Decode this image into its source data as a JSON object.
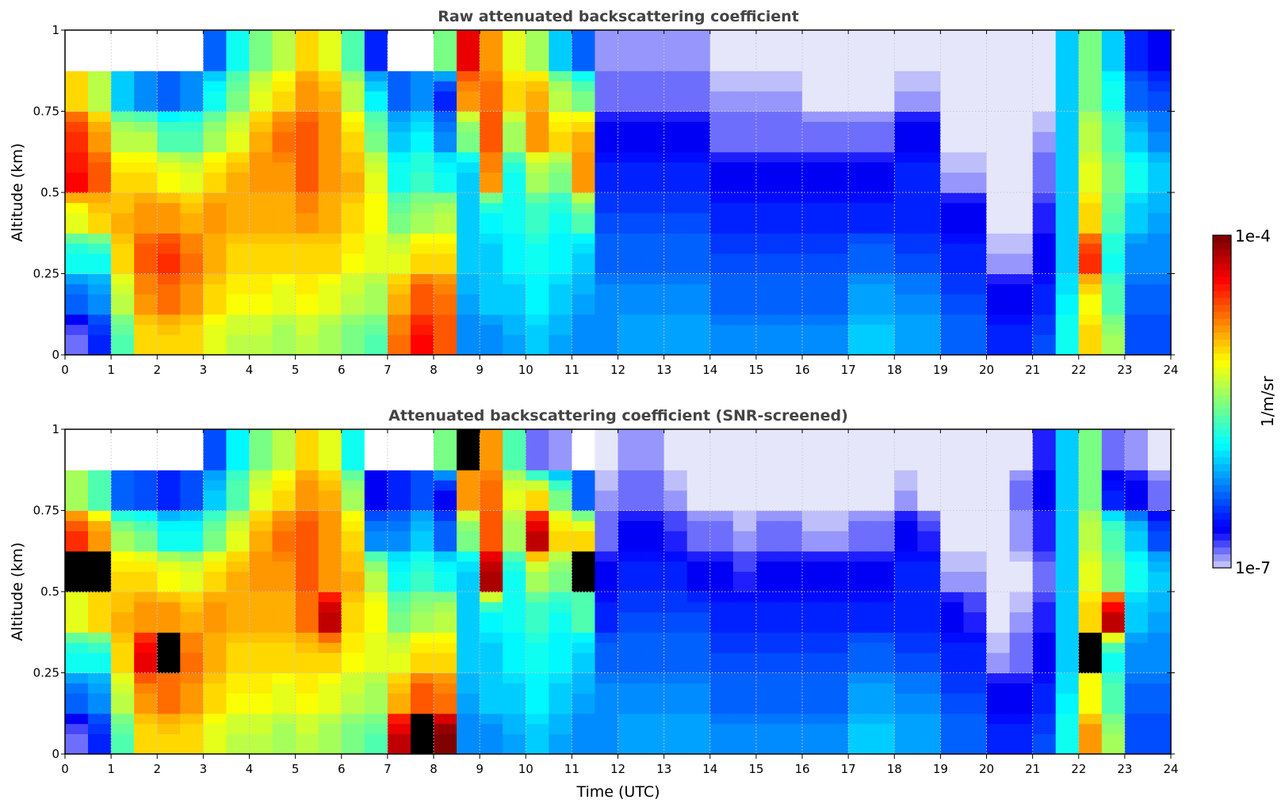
{
  "colorbar": {
    "label": "1/m/sr",
    "max_label": "1e-4",
    "min_label": "1e-7",
    "range_log10": [
      -7,
      -4
    ]
  },
  "chart_data": [
    {
      "type": "heatmap",
      "title": "Raw attenuated backscattering coefficient",
      "xlabel": "",
      "ylabel": "Altitude (km)",
      "xlim": [
        0,
        24
      ],
      "ylim": [
        0,
        1
      ],
      "x_ticks": [
        "0",
        "1",
        "2",
        "3",
        "4",
        "5",
        "6",
        "7",
        "8",
        "9",
        "10",
        "11",
        "12",
        "13",
        "14",
        "15",
        "16",
        "17",
        "18",
        "19",
        "20",
        "21",
        "22",
        "23",
        "24"
      ],
      "y_ticks": [
        "0",
        "0.25",
        "0.5",
        "0.75",
        "1"
      ],
      "grid": true,
      "time_bin_hours": 0.5,
      "altitude_bin_km": 0.125,
      "value_units": "log10(1/m/sr)",
      "values_by_time_bottom_to_top": [
        [
          -6.8,
          -6.3,
          -5.8,
          -5.2,
          -4.4,
          -4.5,
          -5.0,
          null
        ],
        [
          -6.5,
          -6.2,
          -5.8,
          -5.0,
          -4.6,
          -4.8,
          -5.3,
          null
        ],
        [
          -5.6,
          -5.3,
          -5.0,
          -4.9,
          -5.0,
          -5.3,
          -6.0,
          null
        ],
        [
          -5.0,
          -4.8,
          -4.6,
          -4.8,
          -5.0,
          -5.3,
          -6.2,
          null
        ],
        [
          -5.0,
          -4.7,
          -4.5,
          -4.8,
          -5.1,
          -5.6,
          -6.3,
          null
        ],
        [
          -5.0,
          -4.8,
          -4.7,
          -4.9,
          -5.2,
          -5.6,
          -6.2,
          null
        ],
        [
          -5.2,
          -5.0,
          -4.9,
          -4.8,
          -5.0,
          -5.4,
          -5.8,
          -6.3
        ],
        [
          -5.3,
          -5.1,
          -5.0,
          -4.9,
          -4.9,
          -5.2,
          -5.5,
          -5.8
        ],
        [
          -5.3,
          -5.1,
          -5.0,
          -4.9,
          -4.8,
          -4.9,
          -5.2,
          -5.5
        ],
        [
          -5.4,
          -5.2,
          -5.0,
          -4.9,
          -4.8,
          -4.7,
          -5.0,
          -5.3
        ],
        [
          -5.3,
          -5.1,
          -5.0,
          -4.8,
          -4.6,
          -4.6,
          -4.8,
          -5.0
        ],
        [
          -5.4,
          -5.2,
          -5.0,
          -4.9,
          -4.8,
          -4.8,
          -4.9,
          -5.2
        ],
        [
          -5.5,
          -5.3,
          -5.1,
          -5.0,
          -4.9,
          -5.0,
          -5.3,
          -5.6
        ],
        [
          -5.6,
          -5.4,
          -5.2,
          -5.1,
          -5.2,
          -5.5,
          -5.9,
          -6.5
        ],
        [
          -4.7,
          -4.9,
          -5.2,
          -5.5,
          -5.8,
          -6.0,
          -6.3,
          null
        ],
        [
          -4.4,
          -4.6,
          -5.0,
          -5.4,
          -5.7,
          -5.9,
          -6.2,
          null
        ],
        [
          -4.6,
          -4.7,
          -5.0,
          -5.3,
          -5.8,
          -6.2,
          -6.5,
          -5.5
        ],
        [
          -6.2,
          -6.1,
          -6.0,
          -6.0,
          -6.0,
          -5.5,
          -4.8,
          -4.3
        ],
        [
          -6.2,
          -6.0,
          -6.0,
          -5.9,
          -4.8,
          -4.6,
          -4.7,
          -4.8
        ],
        [
          -6.1,
          -6.0,
          -5.9,
          -5.8,
          -5.8,
          -5.4,
          -5.0,
          -5.2
        ],
        [
          -6.0,
          -5.9,
          -5.8,
          -5.7,
          -5.4,
          -4.8,
          -4.9,
          -5.4
        ],
        [
          -6.1,
          -6.0,
          -5.9,
          -5.8,
          -5.5,
          -5.0,
          -5.3,
          -6.0
        ],
        [
          -6.2,
          -6.1,
          -6.0,
          -5.6,
          -4.8,
          -4.9,
          -5.5,
          -6.3
        ],
        [
          -6.2,
          -6.2,
          -6.3,
          -6.4,
          -6.5,
          -6.6,
          -6.8,
          -6.9
        ],
        [
          -6.1,
          -6.2,
          -6.3,
          -6.4,
          -6.5,
          -6.6,
          -6.8,
          -6.9
        ],
        [
          -6.1,
          -6.2,
          -6.3,
          -6.4,
          -6.5,
          -6.6,
          -6.8,
          -6.9
        ],
        [
          -6.1,
          -6.2,
          -6.3,
          -6.4,
          -6.5,
          -6.6,
          -6.8,
          -6.9
        ],
        [
          -6.1,
          -6.2,
          -6.3,
          -6.4,
          -6.5,
          -6.6,
          -6.8,
          -6.9
        ],
        [
          -6.2,
          -6.3,
          -6.4,
          -6.5,
          -6.6,
          -6.8,
          -6.9,
          -7.0
        ],
        [
          -6.2,
          -6.3,
          -6.4,
          -6.5,
          -6.6,
          -6.8,
          -6.9,
          -7.0
        ],
        [
          -6.2,
          -6.3,
          -6.4,
          -6.5,
          -6.6,
          -6.8,
          -6.9,
          -7.0
        ],
        [
          -6.2,
          -6.3,
          -6.4,
          -6.5,
          -6.6,
          -6.8,
          -6.9,
          -7.0
        ],
        [
          -6.2,
          -6.3,
          -6.4,
          -6.5,
          -6.6,
          -6.8,
          -7.0,
          -7.0
        ],
        [
          -6.2,
          -6.3,
          -6.4,
          -6.5,
          -6.6,
          -6.8,
          -7.0,
          -7.0
        ],
        [
          -6.0,
          -6.1,
          -6.3,
          -6.5,
          -6.6,
          -6.8,
          -7.0,
          -7.0
        ],
        [
          -6.0,
          -6.1,
          -6.3,
          -6.5,
          -6.6,
          -6.8,
          -7.0,
          -7.0
        ],
        [
          -6.1,
          -6.2,
          -6.4,
          -6.5,
          -6.5,
          -6.6,
          -6.9,
          -7.0
        ],
        [
          -6.1,
          -6.2,
          -6.4,
          -6.5,
          -6.5,
          -6.6,
          -6.9,
          -7.0
        ],
        [
          -6.3,
          -6.4,
          -6.5,
          -6.6,
          -6.9,
          -7.0,
          -7.0,
          -7.0
        ],
        [
          -6.3,
          -6.4,
          -6.5,
          -6.6,
          -6.9,
          -7.0,
          -7.0,
          -7.0
        ],
        [
          -6.5,
          -6.6,
          -6.9,
          -7.0,
          -7.0,
          -7.0,
          -7.0,
          -7.0
        ],
        [
          -6.5,
          -6.6,
          -6.9,
          -7.0,
          -7.0,
          -7.0,
          -7.0,
          -7.0
        ],
        [
          -6.4,
          -6.5,
          -6.6,
          -6.7,
          -6.8,
          -6.9,
          -7.0,
          -7.0
        ],
        [
          -5.8,
          -5.9,
          -6.0,
          -6.0,
          -6.0,
          -6.0,
          -6.0,
          -6.0
        ],
        [
          -5.0,
          -5.1,
          -4.5,
          -5.0,
          -5.2,
          -5.3,
          -5.5,
          -5.5
        ],
        [
          -5.4,
          -5.6,
          -5.8,
          -5.6,
          -5.5,
          -5.6,
          -5.8,
          -6.0
        ],
        [
          -6.4,
          -6.3,
          -6.2,
          -6.0,
          -5.8,
          -6.0,
          -6.3,
          -6.5
        ],
        [
          -6.4,
          -6.3,
          -6.2,
          -6.1,
          -6.0,
          -6.2,
          -6.4,
          -6.6
        ]
      ]
    },
    {
      "type": "heatmap",
      "title": "Attenuated backscattering coefficient (SNR-screened)",
      "xlabel": "Time (UTC)",
      "ylabel": "Altitude (km)",
      "xlim": [
        0,
        24
      ],
      "ylim": [
        0,
        1
      ],
      "x_ticks": [
        "0",
        "1",
        "2",
        "3",
        "4",
        "5",
        "6",
        "7",
        "8",
        "9",
        "10",
        "11",
        "12",
        "13",
        "14",
        "15",
        "16",
        "17",
        "18",
        "19",
        "20",
        "21",
        "22",
        "23",
        "24"
      ],
      "y_ticks": [
        "0",
        "0.25",
        "0.5",
        "0.75",
        "1"
      ],
      "grid": true,
      "time_bin_hours": 0.5,
      "altitude_bin_km": 0.125,
      "value_units": "log10(1/m/sr)",
      "values_by_time_bottom_to_top": [
        [
          -6.8,
          -6.3,
          -5.8,
          -5.2,
          -3.9,
          -4.5,
          -5.4,
          null
        ],
        [
          -6.5,
          -6.2,
          -5.8,
          -5.0,
          -3.9,
          -4.8,
          -5.6,
          null
        ],
        [
          -5.6,
          -5.3,
          -5.0,
          -4.9,
          -5.0,
          -5.4,
          -6.3,
          null
        ],
        [
          -5.0,
          -4.8,
          -4.3,
          -4.8,
          -5.0,
          -5.5,
          -6.4,
          null
        ],
        [
          -5.0,
          -4.7,
          -3.9,
          -4.8,
          -5.1,
          -5.8,
          -6.5,
          null
        ],
        [
          -5.0,
          -4.8,
          -4.7,
          -4.9,
          -5.2,
          -5.8,
          -6.4,
          null
        ],
        [
          -5.2,
          -5.0,
          -4.9,
          -4.8,
          -5.0,
          -5.5,
          -6.0,
          -6.4
        ],
        [
          -5.3,
          -5.1,
          -5.0,
          -4.9,
          -4.9,
          -5.2,
          -5.6,
          -5.9
        ],
        [
          -5.3,
          -5.1,
          -5.0,
          -4.9,
          -4.8,
          -4.9,
          -5.2,
          -5.5
        ],
        [
          -5.4,
          -5.2,
          -5.0,
          -4.9,
          -4.8,
          -4.7,
          -5.0,
          -5.3
        ],
        [
          -5.3,
          -5.1,
          -5.0,
          -4.7,
          -4.6,
          -4.6,
          -4.8,
          -5.0
        ],
        [
          -5.4,
          -5.2,
          -5.0,
          -4.2,
          -4.8,
          -4.8,
          -4.9,
          -5.2
        ],
        [
          -5.5,
          -5.3,
          -5.1,
          -5.0,
          -4.9,
          -5.0,
          -5.4,
          -5.8
        ],
        [
          -5.6,
          -5.4,
          -5.2,
          -5.1,
          -5.3,
          -6.2,
          -6.6,
          null
        ],
        [
          -4.2,
          -4.9,
          -5.2,
          -5.5,
          -5.8,
          -6.2,
          -6.5,
          null
        ],
        [
          -3.9,
          -4.6,
          -5.0,
          -5.4,
          -5.7,
          -6.0,
          -6.4,
          null
        ],
        [
          -4.0,
          -4.7,
          -5.0,
          -5.3,
          -5.8,
          -6.3,
          -6.6,
          -5.5
        ],
        [
          -6.2,
          -6.1,
          -6.0,
          -6.0,
          -6.0,
          -5.5,
          -4.8,
          -3.9
        ],
        [
          -6.2,
          -6.0,
          -6.0,
          -5.9,
          -4.1,
          -4.6,
          -4.7,
          -4.8
        ],
        [
          -6.1,
          -6.0,
          -5.9,
          -5.8,
          -5.8,
          -5.4,
          -5.2,
          -5.6
        ],
        [
          -6.0,
          -5.9,
          -5.8,
          -5.7,
          -5.4,
          -4.2,
          -5.0,
          -6.8
        ],
        [
          -6.1,
          -6.0,
          -5.9,
          -5.8,
          -5.5,
          -5.0,
          -5.5,
          -6.9
        ],
        [
          -6.2,
          -6.1,
          -6.0,
          -5.6,
          -3.9,
          -5.0,
          -6.3,
          null
        ],
        [
          -6.2,
          -6.2,
          -6.3,
          -6.5,
          -6.6,
          -6.8,
          -6.9,
          -7.0
        ],
        [
          -6.1,
          -6.2,
          -6.3,
          -6.4,
          -6.5,
          -6.6,
          -6.8,
          -6.9
        ],
        [
          -6.1,
          -6.2,
          -6.3,
          -6.4,
          -6.5,
          -6.6,
          -6.8,
          -6.9
        ],
        [
          -6.1,
          -6.2,
          -6.3,
          -6.4,
          -6.5,
          -6.7,
          -6.9,
          -7.0
        ],
        [
          -6.1,
          -6.2,
          -6.3,
          -6.4,
          -6.6,
          -6.8,
          -7.0,
          -7.0
        ],
        [
          -6.2,
          -6.3,
          -6.4,
          -6.5,
          -6.6,
          -6.8,
          -7.0,
          -7.0
        ],
        [
          -6.2,
          -6.3,
          -6.4,
          -6.5,
          -6.7,
          -6.9,
          -7.0,
          -7.0
        ],
        [
          -6.2,
          -6.3,
          -6.4,
          -6.5,
          -6.6,
          -6.8,
          -7.0,
          -7.0
        ],
        [
          -6.2,
          -6.3,
          -6.4,
          -6.5,
          -6.6,
          -6.8,
          -7.0,
          -7.0
        ],
        [
          -6.2,
          -6.3,
          -6.4,
          -6.5,
          -6.6,
          -6.9,
          -7.0,
          -7.0
        ],
        [
          -6.2,
          -6.3,
          -6.4,
          -6.5,
          -6.6,
          -6.9,
          -7.0,
          -7.0
        ],
        [
          -6.0,
          -6.1,
          -6.3,
          -6.5,
          -6.6,
          -6.8,
          -7.0,
          -7.0
        ],
        [
          -6.0,
          -6.1,
          -6.3,
          -6.5,
          -6.6,
          -6.8,
          -7.0,
          -7.0
        ],
        [
          -6.1,
          -6.2,
          -6.4,
          -6.5,
          -6.5,
          -6.6,
          -6.9,
          -7.0
        ],
        [
          -6.1,
          -6.2,
          -6.4,
          -6.5,
          -6.5,
          -6.7,
          -7.0,
          -7.0
        ],
        [
          -6.3,
          -6.4,
          -6.5,
          -6.6,
          -6.9,
          -7.0,
          -7.0,
          -7.0
        ],
        [
          -6.3,
          -6.4,
          -6.5,
          -6.7,
          -6.9,
          -7.0,
          -7.0,
          -7.0
        ],
        [
          -6.5,
          -6.6,
          -6.9,
          -7.0,
          -7.0,
          -7.0,
          -7.0,
          -7.0
        ],
        [
          -6.5,
          -6.6,
          -6.8,
          -6.9,
          -7.0,
          -6.9,
          -6.8,
          -7.0
        ],
        [
          -6.4,
          -6.5,
          -6.6,
          -6.7,
          -6.8,
          -6.7,
          -6.6,
          -6.7
        ],
        [
          -5.8,
          -5.9,
          -6.0,
          -6.0,
          -6.0,
          -6.0,
          -6.0,
          -6.0
        ],
        [
          -4.8,
          -5.1,
          -3.9,
          -5.0,
          -5.2,
          -5.3,
          -5.5,
          -5.5
        ],
        [
          -5.4,
          -5.6,
          -5.8,
          -4.2,
          -5.5,
          -5.6,
          -6.5,
          -6.8
        ],
        [
          -6.4,
          -6.3,
          -6.2,
          -6.0,
          -5.8,
          -6.0,
          -6.6,
          -6.9
        ],
        [
          -6.4,
          -6.3,
          -6.2,
          -6.1,
          -6.0,
          -6.4,
          -6.8,
          -7.0
        ]
      ]
    }
  ]
}
